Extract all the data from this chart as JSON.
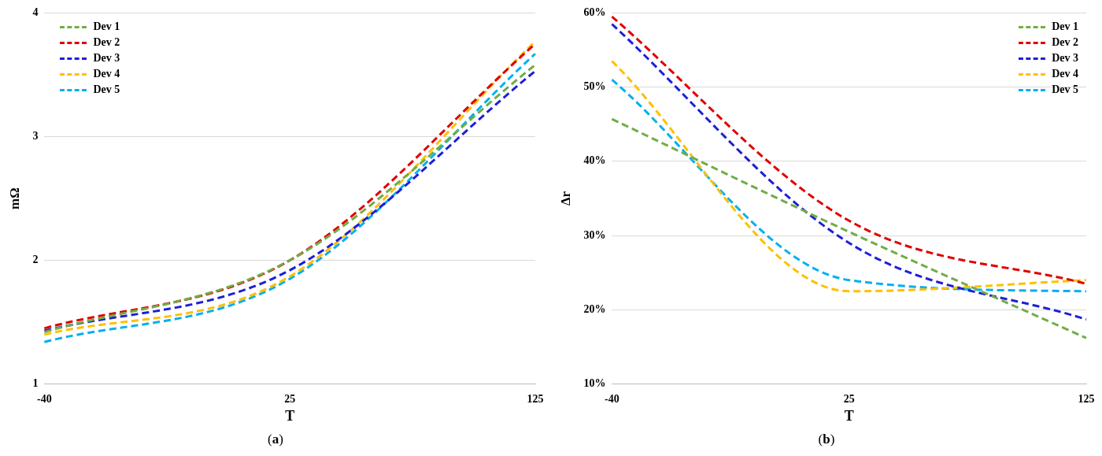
{
  "chart_data": [
    {
      "type": "line",
      "xlabel": "T",
      "ylabel": "mΩ",
      "categories": [
        "-40",
        "25",
        "125"
      ],
      "ylim": [
        1,
        4
      ],
      "yticks": [
        1,
        2,
        3,
        4
      ],
      "grid": "y",
      "legend": "top left",
      "line_style": "dashed",
      "marker": "none",
      "annotations": [
        "(a)"
      ],
      "series": [
        {
          "name": "Dev 1",
          "color": "#70ad47",
          "values": [
            1.42,
            2.0,
            3.58
          ]
        },
        {
          "name": "Dev 2",
          "color": "#e00000",
          "values": [
            1.45,
            2.0,
            3.75
          ]
        },
        {
          "name": "Dev 3",
          "color": "#1f1fd6",
          "values": [
            1.43,
            1.92,
            3.53
          ]
        },
        {
          "name": "Dev 4",
          "color": "#ffc000",
          "values": [
            1.4,
            1.87,
            3.77
          ]
        },
        {
          "name": "Dev 5",
          "color": "#00b0f0",
          "values": [
            1.34,
            1.85,
            3.67
          ]
        }
      ]
    },
    {
      "type": "line",
      "xlabel": "T",
      "ylabel": "Δr",
      "categories": [
        "-40",
        "25",
        "125"
      ],
      "ylim": [
        10,
        60
      ],
      "yticks": [
        {
          "value": 10,
          "label": "10%"
        },
        {
          "value": 20,
          "label": "20%"
        },
        {
          "value": 30,
          "label": "30%"
        },
        {
          "value": 40,
          "label": "40%"
        },
        {
          "value": 50,
          "label": "50%"
        },
        {
          "value": 60,
          "label": "60%"
        }
      ],
      "grid": "y",
      "legend": "top right",
      "line_style": "dashed",
      "marker": "none",
      "annotations": [
        "(b)"
      ],
      "series": [
        {
          "name": "Dev 1",
          "color": "#70ad47",
          "values": [
            45.7,
            30.5,
            16.2
          ]
        },
        {
          "name": "Dev 2",
          "color": "#e00000",
          "values": [
            59.5,
            32,
            23.5
          ]
        },
        {
          "name": "Dev 3",
          "color": "#1f1fd6",
          "values": [
            58.5,
            29,
            18.7
          ]
        },
        {
          "name": "Dev 4",
          "color": "#ffc000",
          "values": [
            53.5,
            22.5,
            24
          ]
        },
        {
          "name": "Dev 5",
          "color": "#00b0f0",
          "values": [
            51,
            24,
            22.5
          ]
        }
      ]
    }
  ]
}
